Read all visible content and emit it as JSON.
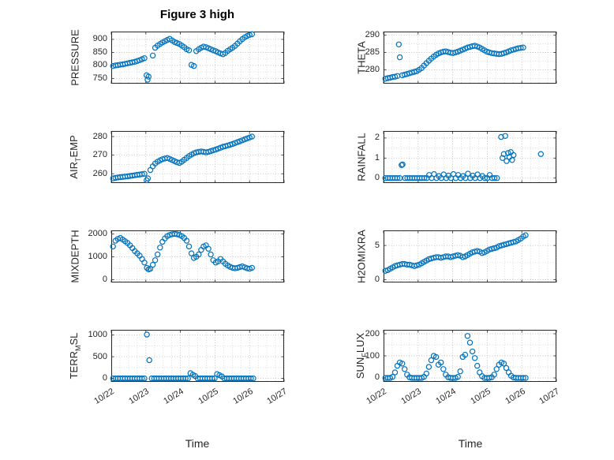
{
  "title": "Figure 3 high",
  "xlabel": "Time",
  "marker_color": "#0072BD",
  "axis_color": "#262626",
  "grid_major_color": "#bdbdbd",
  "grid_minor_color": "#d8d8d8",
  "x_axis": {
    "lim": [
      0,
      5
    ],
    "ticks": [
      0,
      1,
      2,
      3,
      4,
      5
    ],
    "tick_labels": [
      "10/22",
      "10/23",
      "10/24",
      "10/25",
      "10/26",
      "10/27"
    ],
    "minor_step": 0.25
  },
  "chart_data": [
    {
      "type": "scatter",
      "name": "pressure",
      "ylabel": "PRESSURE",
      "label_parts": [
        {
          "t": "PRESSURE"
        }
      ],
      "ylim": [
        730,
        930
      ],
      "yticks": [
        750,
        800,
        850,
        900
      ],
      "ygrid": [
        750,
        775,
        800,
        825,
        850,
        875,
        900
      ],
      "x": [
        0.05,
        0.12,
        0.19,
        0.26,
        0.33,
        0.4,
        0.47,
        0.54,
        0.61,
        0.68,
        0.75,
        0.82,
        0.89,
        0.96,
        1.02,
        1.05,
        1.08,
        1.2,
        1.27,
        1.34,
        1.41,
        1.48,
        1.55,
        1.62,
        1.69,
        1.76,
        1.83,
        1.9,
        1.97,
        2.04,
        2.11,
        2.18,
        2.25,
        2.32,
        2.39,
        2.46,
        2.53,
        2.6,
        2.67,
        2.74,
        2.81,
        2.88,
        2.95,
        3.02,
        3.09,
        3.16,
        3.23,
        3.3,
        3.37,
        3.44,
        3.51,
        3.58,
        3.65,
        3.72,
        3.79,
        3.86,
        3.93,
        4.0,
        4.07
      ],
      "y": [
        798,
        800,
        801,
        803,
        804,
        806,
        808,
        810,
        812,
        814,
        817,
        820,
        824,
        828,
        762,
        745,
        757,
        838,
        868,
        876,
        882,
        888,
        893,
        898,
        902,
        896,
        890,
        886,
        882,
        876,
        870,
        862,
        858,
        802,
        798,
        855,
        862,
        868,
        872,
        870,
        866,
        862,
        858,
        855,
        850,
        846,
        843,
        848,
        856,
        862,
        868,
        875,
        884,
        893,
        901,
        908,
        913,
        917,
        920
      ]
    },
    {
      "type": "scatter",
      "name": "theta",
      "ylabel": "THETA",
      "label_parts": [
        {
          "t": "THETA"
        }
      ],
      "ylim": [
        276,
        291
      ],
      "yticks": [
        280,
        285,
        290
      ],
      "ygrid": [
        277.5,
        280,
        282.5,
        285,
        287.5,
        290
      ],
      "x": [
        0.05,
        0.12,
        0.19,
        0.26,
        0.33,
        0.4,
        0.44,
        0.47,
        0.54,
        0.61,
        0.68,
        0.75,
        0.82,
        0.89,
        0.96,
        1.03,
        1.1,
        1.17,
        1.24,
        1.31,
        1.38,
        1.45,
        1.52,
        1.59,
        1.66,
        1.73,
        1.8,
        1.87,
        1.94,
        2.01,
        2.08,
        2.15,
        2.22,
        2.29,
        2.36,
        2.43,
        2.5,
        2.57,
        2.64,
        2.71,
        2.78,
        2.85,
        2.92,
        2.99,
        3.06,
        3.13,
        3.2,
        3.27,
        3.34,
        3.41,
        3.48,
        3.55,
        3.62,
        3.69,
        3.76,
        3.83,
        3.9,
        3.97,
        4.04
      ],
      "y": [
        277.4,
        277.6,
        277.7,
        277.9,
        278.0,
        278.2,
        287.3,
        283.6,
        278.4,
        278.6,
        278.8,
        279.0,
        279.2,
        279.4,
        279.6,
        280.0,
        280.5,
        281.2,
        281.9,
        282.6,
        283.2,
        283.8,
        284.3,
        284.7,
        285.0,
        285.2,
        285.3,
        285.1,
        284.9,
        284.8,
        285.0,
        285.2,
        285.5,
        285.8,
        286.1,
        286.4,
        286.6,
        286.8,
        286.9,
        286.7,
        286.4,
        286.0,
        285.6,
        285.2,
        285.0,
        284.8,
        284.7,
        284.6,
        284.5,
        284.6,
        284.8,
        285.0,
        285.3,
        285.6,
        285.8,
        286.0,
        286.2,
        286.3,
        286.4
      ]
    },
    {
      "type": "scatter",
      "name": "air_temp",
      "ylabel": "AIR_TEMP",
      "label_parts": [
        {
          "t": "AIR"
        },
        {
          "t": "T",
          "sub": true
        },
        {
          "t": "EMP"
        }
      ],
      "ylim": [
        255,
        283
      ],
      "yticks": [
        260,
        270,
        280
      ],
      "ygrid": [
        260,
        265,
        270,
        275,
        280
      ],
      "x": [
        0.05,
        0.12,
        0.19,
        0.26,
        0.33,
        0.4,
        0.47,
        0.54,
        0.61,
        0.68,
        0.75,
        0.82,
        0.89,
        0.96,
        1.02,
        1.06,
        1.13,
        1.2,
        1.27,
        1.34,
        1.41,
        1.48,
        1.55,
        1.62,
        1.69,
        1.76,
        1.83,
        1.9,
        1.97,
        2.04,
        2.11,
        2.18,
        2.25,
        2.32,
        2.39,
        2.46,
        2.53,
        2.6,
        2.67,
        2.74,
        2.81,
        2.88,
        2.95,
        3.02,
        3.09,
        3.16,
        3.23,
        3.3,
        3.37,
        3.44,
        3.51,
        3.58,
        3.65,
        3.72,
        3.79,
        3.86,
        3.93,
        4.0,
        4.07
      ],
      "y": [
        257.5,
        257.8,
        258.0,
        258.2,
        258.3,
        258.5,
        258.6,
        258.8,
        259.0,
        259.2,
        259.4,
        259.6,
        259.8,
        260.0,
        256.5,
        257.5,
        262.0,
        264.0,
        265.5,
        266.5,
        267.2,
        267.8,
        268.2,
        268.5,
        268.0,
        267.4,
        266.8,
        266.2,
        265.8,
        266.5,
        267.5,
        268.5,
        269.5,
        270.3,
        271.0,
        271.5,
        271.8,
        272.0,
        271.8,
        271.5,
        271.8,
        272.2,
        272.6,
        273.0,
        273.5,
        274.0,
        274.5,
        274.8,
        275.2,
        275.6,
        276.0,
        276.5,
        277.0,
        277.5,
        278.0,
        278.5,
        279.0,
        279.5,
        280.0
      ]
    },
    {
      "type": "scatter",
      "name": "rainfall",
      "ylabel": "RAINFALL",
      "label_parts": [
        {
          "t": "RAINFALL"
        }
      ],
      "ylim": [
        -0.25,
        2.35
      ],
      "yticks": [
        0,
        1,
        2
      ],
      "ygrid": [
        0,
        0.5,
        1,
        1.5,
        2
      ],
      "x": [
        0.05,
        0.12,
        0.19,
        0.26,
        0.33,
        0.4,
        0.47,
        0.52,
        0.55,
        0.62,
        0.69,
        0.76,
        0.83,
        0.9,
        0.97,
        1.04,
        1.11,
        1.18,
        1.25,
        1.32,
        1.39,
        1.46,
        1.53,
        1.6,
        1.67,
        1.74,
        1.81,
        1.88,
        1.95,
        2.02,
        2.09,
        2.16,
        2.23,
        2.3,
        2.37,
        2.44,
        2.51,
        2.58,
        2.65,
        2.72,
        2.79,
        2.86,
        2.93,
        3.0,
        3.07,
        3.14,
        3.21,
        3.28,
        3.4,
        3.44,
        3.48,
        3.52,
        3.56,
        3.6,
        3.64,
        3.68,
        3.72,
        3.76,
        4.55
      ],
      "y": [
        0,
        0,
        0,
        0,
        0,
        0,
        0,
        0.65,
        0.68,
        0,
        0,
        0,
        0,
        0,
        0,
        0,
        0,
        0,
        0,
        0.15,
        0,
        0.2,
        0,
        0.1,
        0,
        0.18,
        0,
        0.12,
        0,
        0.2,
        0,
        0.15,
        0,
        0.1,
        0,
        0.22,
        0,
        0.12,
        0,
        0.18,
        0,
        0.1,
        0,
        0,
        0.15,
        0,
        0,
        0,
        2.05,
        1.0,
        1.2,
        2.1,
        0.85,
        1.25,
        1.05,
        1.3,
        0.9,
        1.15,
        1.2
      ]
    },
    {
      "type": "scatter",
      "name": "mixdepth",
      "ylabel": "MIXDEPTH",
      "label_parts": [
        {
          "t": "MIXDEPTH"
        }
      ],
      "ylim": [
        -120,
        2150
      ],
      "yticks": [
        0,
        1000,
        2000
      ],
      "ygrid": [
        0,
        500,
        1000,
        1500,
        2000
      ],
      "x": [
        0.05,
        0.12,
        0.19,
        0.26,
        0.33,
        0.4,
        0.47,
        0.54,
        0.61,
        0.68,
        0.75,
        0.82,
        0.89,
        0.96,
        1.03,
        1.08,
        1.13,
        1.2,
        1.27,
        1.34,
        1.41,
        1.48,
        1.55,
        1.62,
        1.69,
        1.76,
        1.83,
        1.9,
        1.97,
        2.04,
        2.11,
        2.18,
        2.25,
        2.32,
        2.39,
        2.46,
        2.53,
        2.6,
        2.67,
        2.74,
        2.81,
        2.88,
        2.95,
        3.02,
        3.09,
        3.16,
        3.23,
        3.3,
        3.37,
        3.44,
        3.51,
        3.58,
        3.65,
        3.72,
        3.79,
        3.86,
        3.93,
        4.0,
        4.07
      ],
      "y": [
        1450,
        1700,
        1780,
        1820,
        1750,
        1680,
        1600,
        1500,
        1380,
        1250,
        1150,
        1050,
        900,
        750,
        520,
        450,
        480,
        650,
        850,
        1100,
        1400,
        1650,
        1800,
        1900,
        1950,
        1980,
        2000,
        1980,
        1950,
        1900,
        1820,
        1700,
        1450,
        1150,
        950,
        1000,
        1100,
        1300,
        1450,
        1500,
        1350,
        1100,
        850,
        750,
        800,
        900,
        800,
        700,
        620,
        560,
        520,
        500,
        520,
        550,
        580,
        540,
        500,
        480,
        520
      ]
    },
    {
      "type": "scatter",
      "name": "h2omixra",
      "ylabel": "H2OMIXRA",
      "label_parts": [
        {
          "t": "H2OMIXRA"
        }
      ],
      "ylim": [
        -0.4,
        7.2
      ],
      "yticks": [
        0,
        5
      ],
      "ygrid": [
        0,
        2.5,
        5
      ],
      "x": [
        0.05,
        0.12,
        0.19,
        0.26,
        0.33,
        0.4,
        0.47,
        0.54,
        0.61,
        0.68,
        0.75,
        0.82,
        0.89,
        0.96,
        1.03,
        1.1,
        1.17,
        1.24,
        1.31,
        1.38,
        1.45,
        1.52,
        1.59,
        1.66,
        1.73,
        1.8,
        1.87,
        1.94,
        2.01,
        2.08,
        2.15,
        2.22,
        2.29,
        2.36,
        2.43,
        2.5,
        2.57,
        2.64,
        2.71,
        2.78,
        2.85,
        2.92,
        2.99,
        3.06,
        3.13,
        3.2,
        3.27,
        3.34,
        3.41,
        3.48,
        3.55,
        3.62,
        3.69,
        3.76,
        3.83,
        3.9,
        3.97,
        4.04,
        4.11
      ],
      "y": [
        1.3,
        1.4,
        1.6,
        1.8,
        2.0,
        2.1,
        2.2,
        2.3,
        2.3,
        2.2,
        2.2,
        2.1,
        2.0,
        2.1,
        2.2,
        2.4,
        2.6,
        2.8,
        3.0,
        3.1,
        3.2,
        3.3,
        3.3,
        3.2,
        3.3,
        3.4,
        3.4,
        3.3,
        3.4,
        3.5,
        3.6,
        3.5,
        3.3,
        3.4,
        3.6,
        3.8,
        4.0,
        4.1,
        4.2,
        4.1,
        3.9,
        4.0,
        4.2,
        4.4,
        4.5,
        4.6,
        4.7,
        4.9,
        5.0,
        5.1,
        5.2,
        5.3,
        5.4,
        5.5,
        5.6,
        5.8,
        6.0,
        6.3,
        6.5
      ]
    },
    {
      "type": "scatter",
      "name": "terr_msl",
      "ylabel": "TERR_MSL",
      "label_parts": [
        {
          "t": "TERR"
        },
        {
          "t": "M",
          "sub": true
        },
        {
          "t": "SL"
        }
      ],
      "ylim": [
        -80,
        1120
      ],
      "yticks": [
        0,
        500,
        1000
      ],
      "ygrid": [
        0,
        250,
        500,
        750,
        1000
      ],
      "x": [
        0.05,
        0.12,
        0.19,
        0.26,
        0.33,
        0.4,
        0.47,
        0.54,
        0.61,
        0.68,
        0.75,
        0.82,
        0.89,
        0.96,
        1.03,
        1.1,
        1.17,
        1.24,
        1.31,
        1.38,
        1.45,
        1.52,
        1.59,
        1.66,
        1.73,
        1.8,
        1.87,
        1.94,
        2.01,
        2.08,
        2.15,
        2.22,
        2.29,
        2.36,
        2.43,
        2.5,
        2.57,
        2.64,
        2.71,
        2.78,
        2.85,
        2.92,
        2.99,
        3.06,
        3.13,
        3.2,
        3.27,
        3.34,
        3.41,
        3.48,
        3.55,
        3.62,
        3.69,
        3.76,
        3.83,
        3.9,
        3.97,
        4.04,
        4.11
      ],
      "y": [
        0,
        0,
        0,
        0,
        0,
        0,
        0,
        0,
        0,
        0,
        0,
        0,
        0,
        0,
        1010,
        420,
        0,
        0,
        0,
        0,
        0,
        0,
        0,
        0,
        0,
        0,
        0,
        0,
        0,
        0,
        0,
        0,
        120,
        85,
        55,
        0,
        0,
        0,
        0,
        0,
        0,
        0,
        0,
        100,
        75,
        45,
        0,
        0,
        0,
        0,
        0,
        0,
        0,
        0,
        0,
        0,
        0,
        0,
        0
      ]
    },
    {
      "type": "scatter",
      "name": "sun_flux",
      "ylabel": "SUN_FLUX",
      "label_parts": [
        {
          "t": "SUN"
        },
        {
          "t": "F",
          "sub": true
        },
        {
          "t": "LUX"
        }
      ],
      "ylim": [
        -18,
        218
      ],
      "yticks": [
        0,
        100,
        200
      ],
      "ygrid": [
        0,
        50,
        100,
        150,
        200
      ],
      "x": [
        0.05,
        0.12,
        0.19,
        0.26,
        0.33,
        0.4,
        0.47,
        0.54,
        0.61,
        0.68,
        0.75,
        0.82,
        0.89,
        0.96,
        1.03,
        1.1,
        1.17,
        1.24,
        1.31,
        1.38,
        1.45,
        1.52,
        1.59,
        1.66,
        1.73,
        1.8,
        1.87,
        1.94,
        2.01,
        2.08,
        2.15,
        2.22,
        2.29,
        2.36,
        2.43,
        2.5,
        2.57,
        2.64,
        2.71,
        2.78,
        2.85,
        2.92,
        2.99,
        3.06,
        3.13,
        3.2,
        3.27,
        3.34,
        3.41,
        3.48,
        3.55,
        3.62,
        3.69,
        3.76,
        3.83,
        3.9,
        3.97,
        4.04,
        4.11
      ],
      "y": [
        0,
        0,
        0,
        5,
        25,
        55,
        70,
        65,
        40,
        15,
        3,
        0,
        0,
        0,
        0,
        0,
        5,
        20,
        50,
        80,
        100,
        95,
        60,
        70,
        40,
        15,
        3,
        0,
        0,
        0,
        5,
        30,
        95,
        105,
        190,
        160,
        120,
        90,
        55,
        25,
        8,
        0,
        0,
        0,
        3,
        15,
        40,
        60,
        70,
        65,
        45,
        25,
        10,
        2,
        0,
        0,
        0,
        0,
        0
      ]
    }
  ]
}
